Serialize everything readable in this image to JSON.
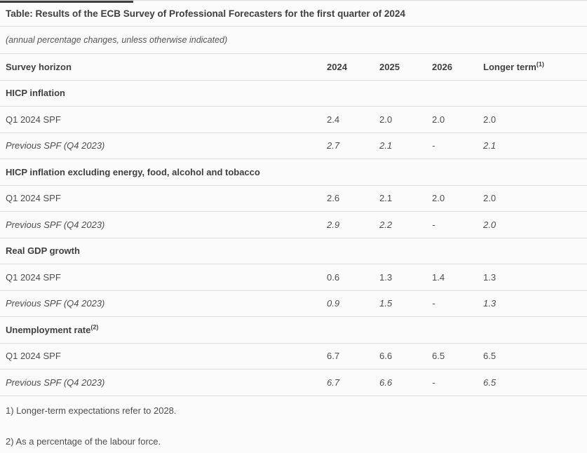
{
  "table": {
    "title": "Table: Results of the ECB Survey of Professional Forecasters for the first quarter of 2024",
    "subtitle": "(annual percentage changes, unless otherwise indicated)",
    "header": {
      "row_label": "Survey horizon",
      "col_2024": "2024",
      "col_2025": "2025",
      "col_2026": "2026",
      "col_longer_term": "Longer term",
      "col_longer_term_sup": "(1)"
    },
    "sections": [
      {
        "heading": "HICP inflation",
        "heading_sup": "",
        "rows": [
          {
            "label": "Q1 2024 SPF",
            "v2024": "2.4",
            "v2025": "2.0",
            "v2026": "2.0",
            "vlt": "2.0"
          },
          {
            "label": "Previous SPF (Q4 2023)",
            "v2024": "2.7",
            "v2025": "2.1",
            "v2026": "-",
            "vlt": "2.1"
          }
        ]
      },
      {
        "heading": "HICP inflation excluding energy, food, alcohol and tobacco",
        "heading_sup": "",
        "rows": [
          {
            "label": "Q1 2024 SPF",
            "v2024": "2.6",
            "v2025": "2.1",
            "v2026": "2.0",
            "vlt": "2.0"
          },
          {
            "label": "Previous SPF (Q4 2023)",
            "v2024": "2.9",
            "v2025": "2.2",
            "v2026": "-",
            "vlt": "2.0"
          }
        ]
      },
      {
        "heading": "Real GDP growth",
        "heading_sup": "",
        "rows": [
          {
            "label": "Q1 2024 SPF",
            "v2024": "0.6",
            "v2025": "1.3",
            "v2026": "1.4",
            "vlt": "1.3"
          },
          {
            "label": "Previous SPF (Q4 2023)",
            "v2024": "0.9",
            "v2025": "1.5",
            "v2026": "-",
            "vlt": "1.3"
          }
        ]
      },
      {
        "heading": "Unemployment rate",
        "heading_sup": "(2)",
        "rows": [
          {
            "label": "Q1 2024 SPF",
            "v2024": "6.7",
            "v2025": "6.6",
            "v2026": "6.5",
            "vlt": "6.5"
          },
          {
            "label": "Previous SPF (Q4 2023)",
            "v2024": "6.7",
            "v2025": "6.6",
            "v2026": "-",
            "vlt": "6.5"
          }
        ]
      }
    ],
    "footnotes": [
      "1) Longer-term expectations refer to 2028.",
      "2) As a percentage of the labour force."
    ],
    "colors": {
      "accent_dark": "#3f3f3f",
      "separator": "#dddddd",
      "background": "#fbfbfb",
      "text_bold": "#3f3f3f",
      "text_regular": "#4d4d4d"
    }
  }
}
